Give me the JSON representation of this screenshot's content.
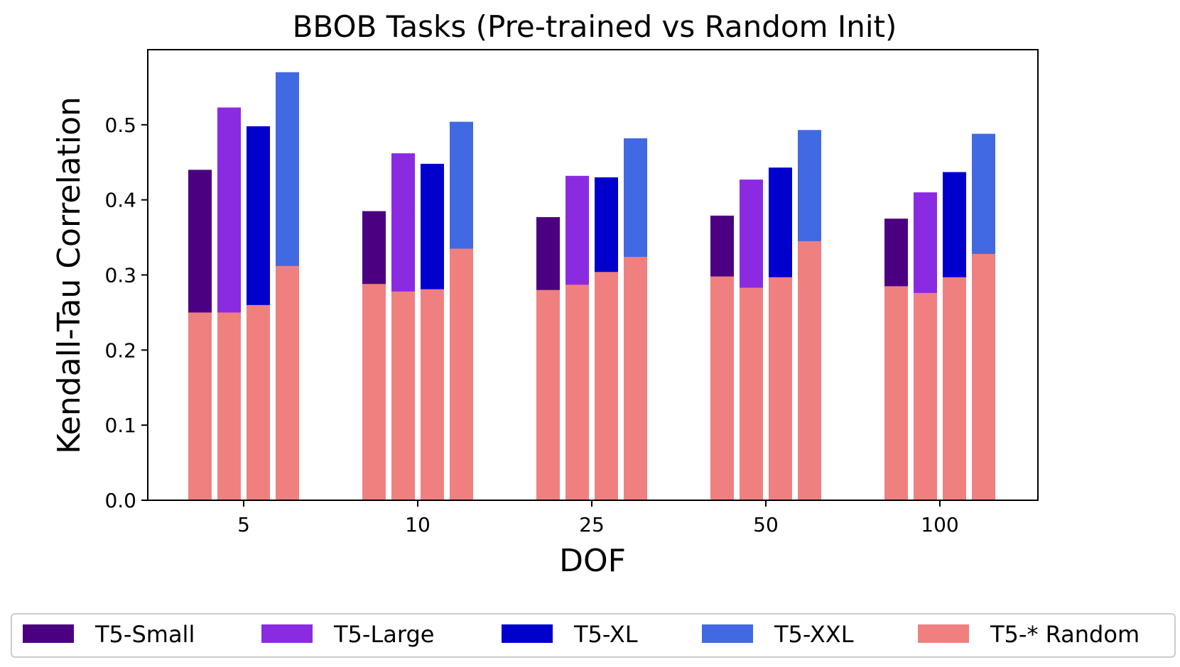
{
  "chart_data": {
    "type": "bar",
    "title": "BBOB Tasks (Pre-trained vs Random Init)",
    "xlabel": "DOF",
    "ylabel": "Kendall-Tau Correlation",
    "ylim": [
      0,
      0.6
    ],
    "yticks": [
      "0.0",
      "0.1",
      "0.2",
      "0.3",
      "0.4",
      "0.5"
    ],
    "categories": [
      "5",
      "10",
      "25",
      "50",
      "100"
    ],
    "series": [
      {
        "name": "T5-Small",
        "color": "#4b0082",
        "values": [
          0.44,
          0.385,
          0.377,
          0.379,
          0.375
        ]
      },
      {
        "name": "T5-Large",
        "color": "#8a2be2",
        "values": [
          0.523,
          0.462,
          0.432,
          0.427,
          0.41
        ]
      },
      {
        "name": "T5-XL",
        "color": "#0000cd",
        "values": [
          0.498,
          0.448,
          0.43,
          0.443,
          0.437
        ]
      },
      {
        "name": "T5-XXL",
        "color": "#4169e1",
        "values": [
          0.57,
          0.504,
          0.482,
          0.493,
          0.488
        ]
      }
    ],
    "random_series": {
      "name": "T5-* Random",
      "color": "#f08080",
      "values": [
        [
          0.25,
          0.25,
          0.26,
          0.312
        ],
        [
          0.288,
          0.278,
          0.281,
          0.335
        ],
        [
          0.28,
          0.287,
          0.304,
          0.324
        ],
        [
          0.298,
          0.283,
          0.297,
          0.345
        ],
        [
          0.285,
          0.276,
          0.297,
          0.328
        ]
      ]
    },
    "legend_position": "bottom",
    "grid": false
  }
}
